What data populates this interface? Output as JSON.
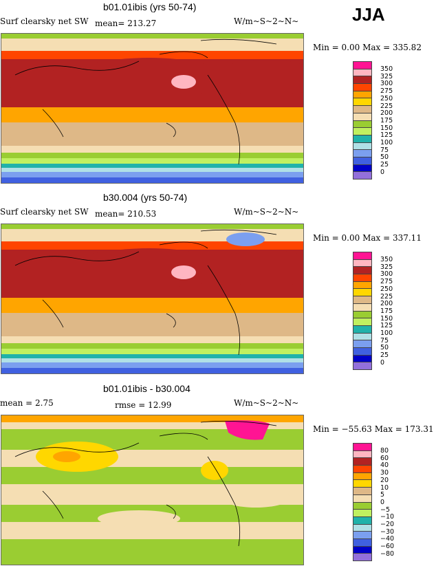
{
  "season": "JJA",
  "palette": [
    "#ff1493",
    "#ffb6c1",
    "#b22222",
    "#ff4500",
    "#ffa500",
    "#ffd700",
    "#deb887",
    "#f5deb3",
    "#9acd32",
    "#c0f060",
    "#20b2aa",
    "#b0e0e6",
    "#7b9fef",
    "#4060e0",
    "#0000c8",
    "#9370db"
  ],
  "panels": [
    {
      "title": "b01.01ibis (yrs 50-74)",
      "left_label": "Surf clearsky net SW",
      "stat1": "mean= 213.27",
      "stat2": "",
      "units": "W/m~S~2~N~",
      "minmax": "Min =   0.00 Max = 335.82",
      "levels": [
        "350",
        "325",
        "300",
        "275",
        "250",
        "225",
        "200",
        "175",
        "150",
        "125",
        "100",
        "75",
        "50",
        "25",
        "0"
      ]
    },
    {
      "title": "b30.004 (yrs 50-74)",
      "left_label": "Surf clearsky net SW",
      "stat1": "mean= 210.53",
      "stat2": "",
      "units": "W/m~S~2~N~",
      "minmax": "Min =   0.00 Max = 337.11",
      "levels": [
        "350",
        "325",
        "300",
        "275",
        "250",
        "225",
        "200",
        "175",
        "150",
        "125",
        "100",
        "75",
        "50",
        "25",
        "0"
      ]
    },
    {
      "title": "b01.01ibis - b30.004",
      "left_label": "mean =    2.75",
      "stat1": "rmse =   12.99",
      "stat2": "",
      "units": "W/m~S~2~N~",
      "minmax": "Min = −55.63 Max = 173.31",
      "levels": [
        "80",
        "60",
        "40",
        "30",
        "20",
        "10",
        "5",
        "0",
        "−5",
        "−10",
        "−20",
        "−30",
        "−40",
        "−60",
        "−80"
      ]
    }
  ]
}
